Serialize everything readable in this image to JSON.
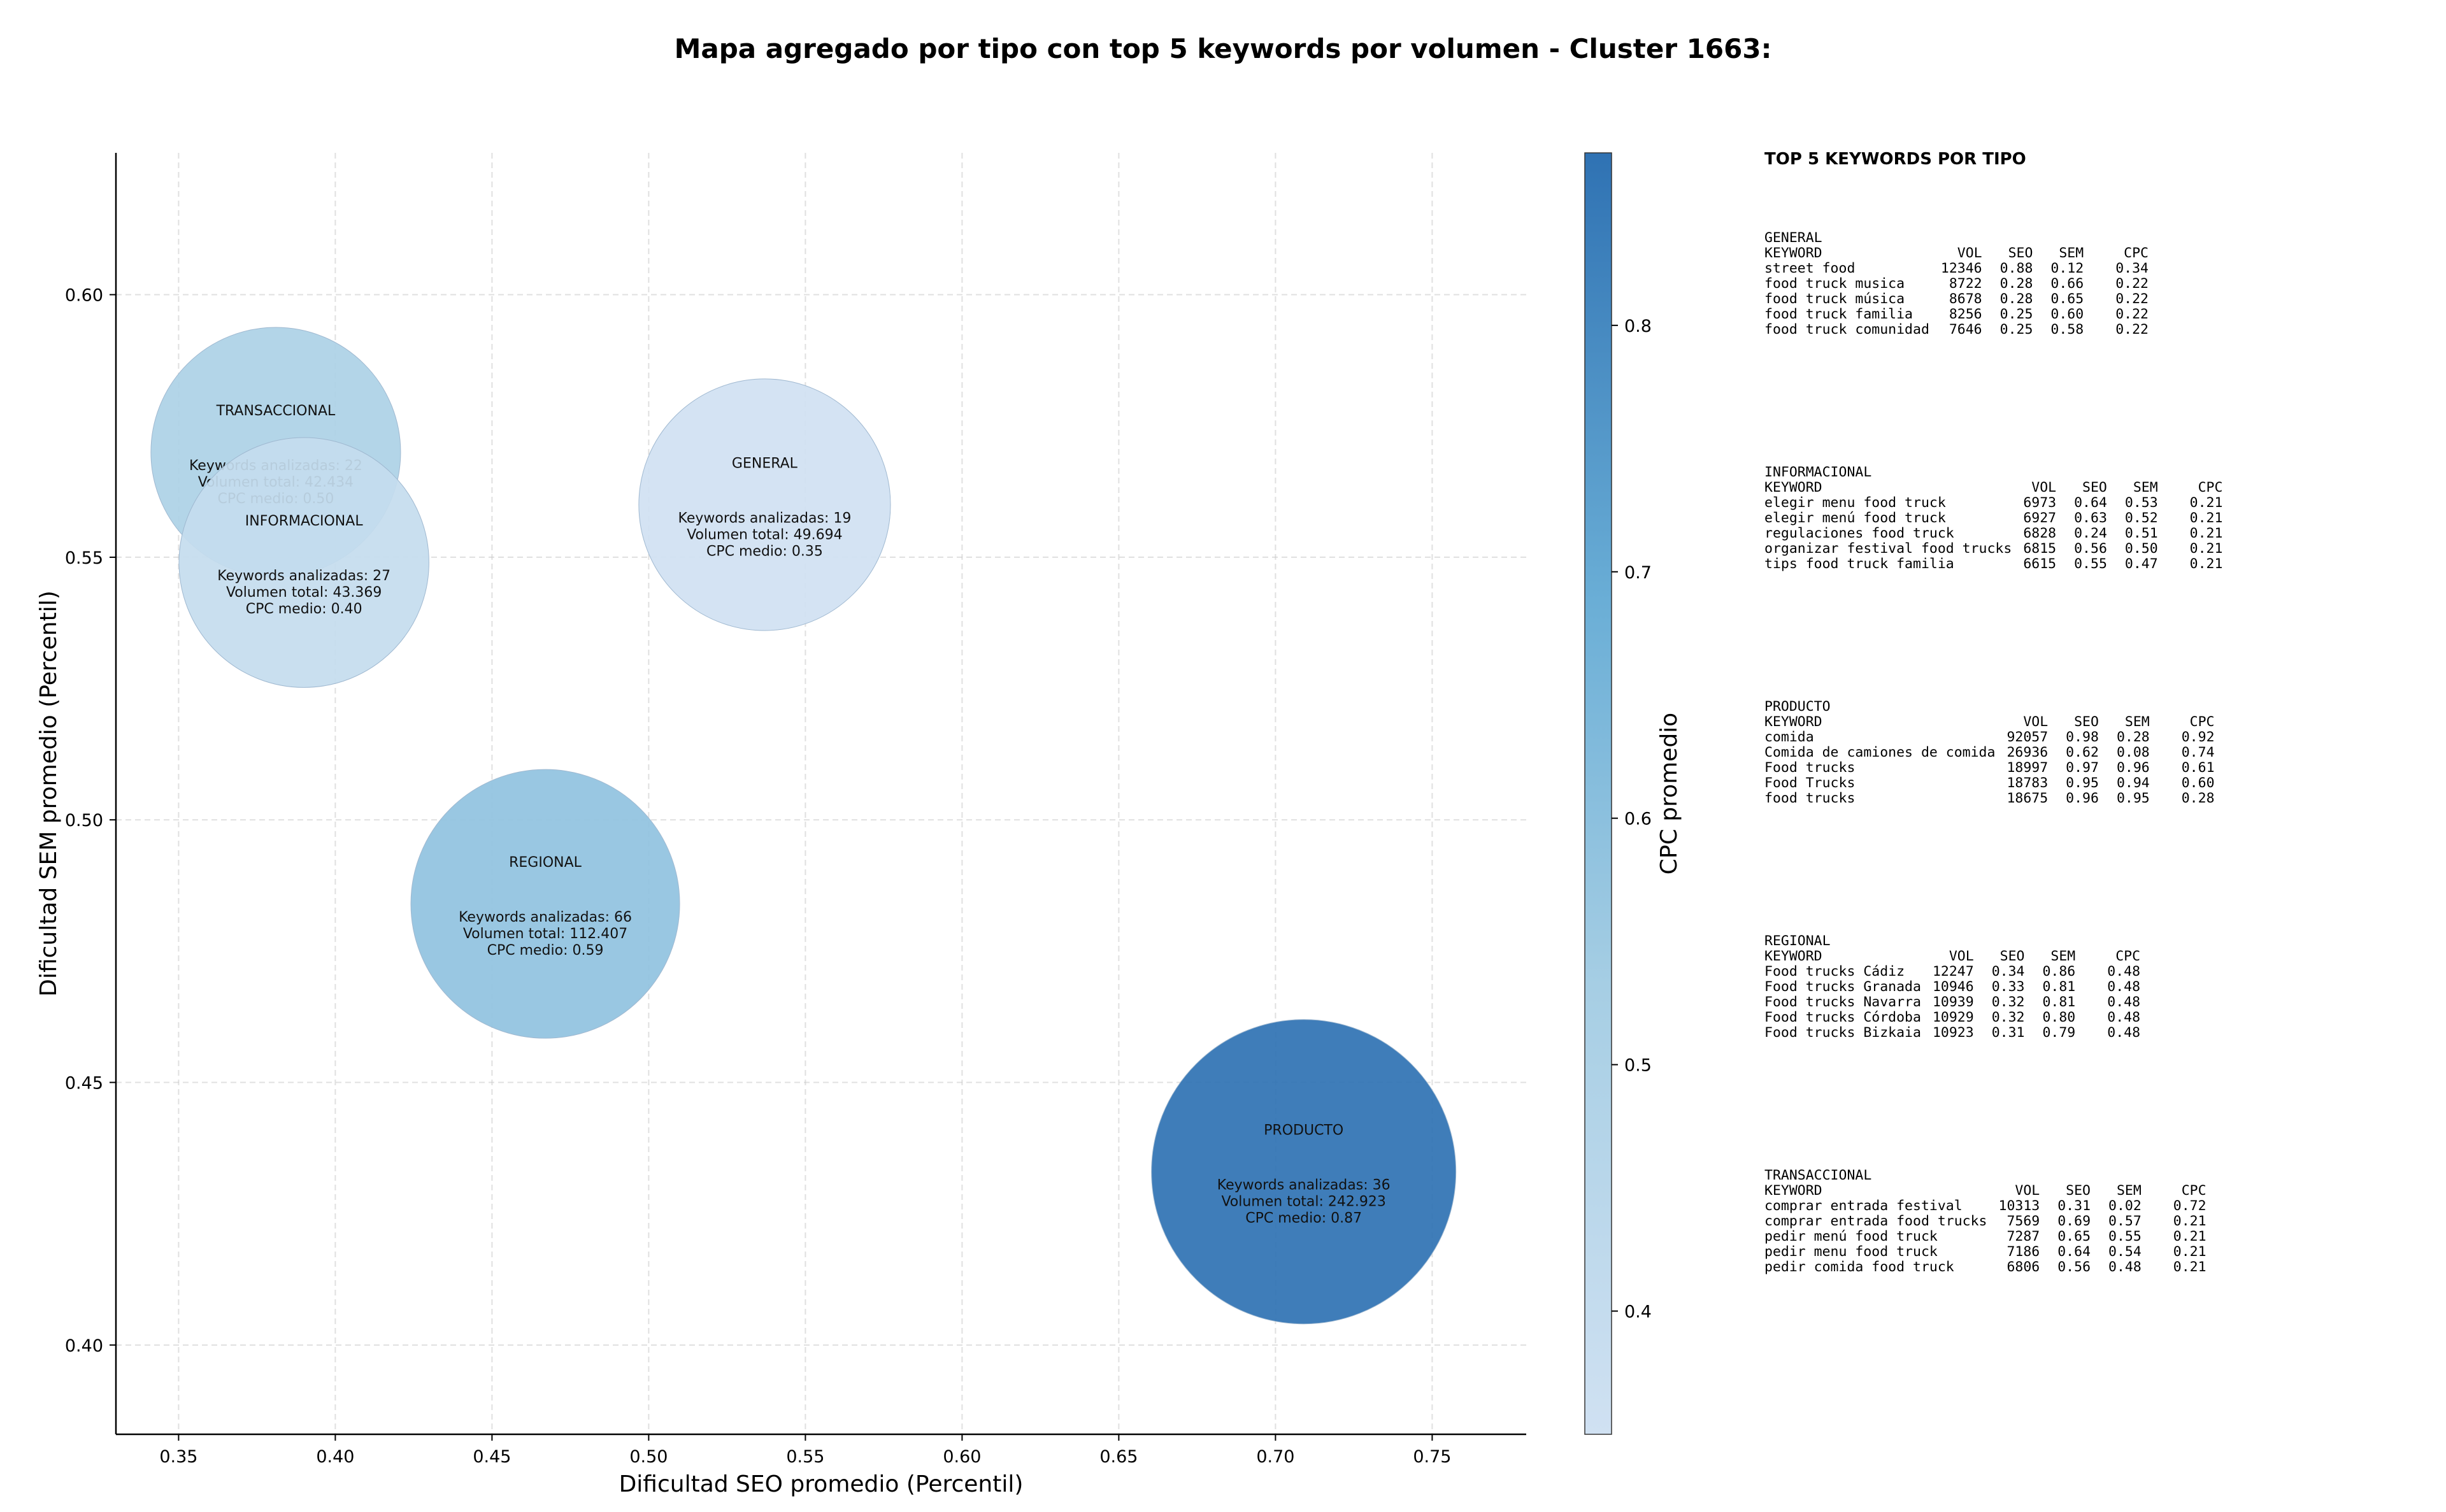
{
  "chart_data": {
    "type": "scatter",
    "title": "Mapa agregado por tipo con top 5 keywords por volumen - Cluster 1663:",
    "xlabel": "Dificultad SEO promedio (Percentil)",
    "ylabel": "Dificultad SEM promedio (Percentil)",
    "xlim": [
      0.33,
      0.78
    ],
    "ylim": [
      0.383,
      0.627
    ],
    "x_ticks": [
      "0.35",
      "0.40",
      "0.45",
      "0.50",
      "0.55",
      "0.60",
      "0.65",
      "0.70",
      "0.75"
    ],
    "y_ticks": [
      "0.40",
      "0.45",
      "0.50",
      "0.55",
      "0.60"
    ],
    "grid": true,
    "colorbar": {
      "label": "CPC promedio",
      "range": [
        0.35,
        0.87
      ],
      "ticks": [
        "0.4",
        "0.5",
        "0.6",
        "0.7",
        "0.8"
      ]
    },
    "bubbles": [
      {
        "name": "TRANSACCIONAL",
        "seo": 0.381,
        "sem": 0.57,
        "keywords_label": "Keywords analizadas: 22",
        "volume_label": "Volumen total: 42.434",
        "cpc_label": "CPC medio: 0.50",
        "volume": 42434,
        "cpc": 0.5
      },
      {
        "name": "INFORMACIONAL",
        "seo": 0.39,
        "sem": 0.549,
        "keywords_label": "Keywords analizadas: 27",
        "volume_label": "Volumen total: 43.369",
        "cpc_label": "CPC medio: 0.40",
        "volume": 43369,
        "cpc": 0.4
      },
      {
        "name": "GENERAL",
        "seo": 0.537,
        "sem": 0.56,
        "keywords_label": "Keywords analizadas: 19",
        "volume_label": "Volumen total: 49.694",
        "cpc_label": "CPC medio: 0.35",
        "volume": 49694,
        "cpc": 0.35
      },
      {
        "name": "REGIONAL",
        "seo": 0.467,
        "sem": 0.484,
        "keywords_label": "Keywords analizadas: 66",
        "volume_label": "Volumen total: 112.407",
        "cpc_label": "CPC medio: 0.59",
        "volume": 112407,
        "cpc": 0.59
      },
      {
        "name": "PRODUCTO",
        "seo": 0.709,
        "sem": 0.433,
        "keywords_label": "Keywords analizadas: 36",
        "volume_label": "Volumen total: 242.923",
        "cpc_label": "CPC medio: 0.87",
        "volume": 242923,
        "cpc": 0.87
      }
    ]
  },
  "side_panel": {
    "title": "TOP 5 KEYWORDS POR TIPO",
    "header": {
      "keyword": "KEYWORD",
      "vol": "VOL",
      "seo": "SEO",
      "sem": "SEM",
      "cpc": "CPC"
    },
    "groups": [
      {
        "name": "GENERAL",
        "rows": [
          {
            "keyword": "street food",
            "vol": "12346",
            "seo": "0.88",
            "sem": "0.12",
            "cpc": "0.34"
          },
          {
            "keyword": "food truck musica",
            "vol": "8722",
            "seo": "0.28",
            "sem": "0.66",
            "cpc": "0.22"
          },
          {
            "keyword": "food truck música",
            "vol": "8678",
            "seo": "0.28",
            "sem": "0.65",
            "cpc": "0.22"
          },
          {
            "keyword": "food truck familia",
            "vol": "8256",
            "seo": "0.25",
            "sem": "0.60",
            "cpc": "0.22"
          },
          {
            "keyword": "food truck comunidad",
            "vol": "7646",
            "seo": "0.25",
            "sem": "0.58",
            "cpc": "0.22"
          }
        ]
      },
      {
        "name": "INFORMACIONAL",
        "rows": [
          {
            "keyword": "elegir menu food truck",
            "vol": "6973",
            "seo": "0.64",
            "sem": "0.53",
            "cpc": "0.21"
          },
          {
            "keyword": "elegir menú food truck",
            "vol": "6927",
            "seo": "0.63",
            "sem": "0.52",
            "cpc": "0.21"
          },
          {
            "keyword": "regulaciones food truck",
            "vol": "6828",
            "seo": "0.24",
            "sem": "0.51",
            "cpc": "0.21"
          },
          {
            "keyword": "organizar festival food trucks",
            "vol": "6815",
            "seo": "0.56",
            "sem": "0.50",
            "cpc": "0.21"
          },
          {
            "keyword": "tips food truck familia",
            "vol": "6615",
            "seo": "0.55",
            "sem": "0.47",
            "cpc": "0.21"
          }
        ]
      },
      {
        "name": "PRODUCTO",
        "rows": [
          {
            "keyword": "comida",
            "vol": "92057",
            "seo": "0.98",
            "sem": "0.28",
            "cpc": "0.92"
          },
          {
            "keyword": "Comida de camiones de comida",
            "vol": "26936",
            "seo": "0.62",
            "sem": "0.08",
            "cpc": "0.74"
          },
          {
            "keyword": "Food trucks",
            "vol": "18997",
            "seo": "0.97",
            "sem": "0.96",
            "cpc": "0.61"
          },
          {
            "keyword": "Food Trucks",
            "vol": "18783",
            "seo": "0.95",
            "sem": "0.94",
            "cpc": "0.60"
          },
          {
            "keyword": "food trucks",
            "vol": "18675",
            "seo": "0.96",
            "sem": "0.95",
            "cpc": "0.28"
          }
        ]
      },
      {
        "name": "REGIONAL",
        "rows": [
          {
            "keyword": "Food trucks Cádiz",
            "vol": "12247",
            "seo": "0.34",
            "sem": "0.86",
            "cpc": "0.48"
          },
          {
            "keyword": "Food trucks Granada",
            "vol": "10946",
            "seo": "0.33",
            "sem": "0.81",
            "cpc": "0.48"
          },
          {
            "keyword": "Food trucks Navarra",
            "vol": "10939",
            "seo": "0.32",
            "sem": "0.81",
            "cpc": "0.48"
          },
          {
            "keyword": "Food trucks Córdoba",
            "vol": "10929",
            "seo": "0.32",
            "sem": "0.80",
            "cpc": "0.48"
          },
          {
            "keyword": "Food trucks Bizkaia",
            "vol": "10923",
            "seo": "0.31",
            "sem": "0.79",
            "cpc": "0.48"
          }
        ]
      },
      {
        "name": "TRANSACCIONAL",
        "rows": [
          {
            "keyword": "comprar entrada festival",
            "vol": "10313",
            "seo": "0.31",
            "sem": "0.02",
            "cpc": "0.72"
          },
          {
            "keyword": "comprar entrada food trucks",
            "vol": "7569",
            "seo": "0.69",
            "sem": "0.57",
            "cpc": "0.21"
          },
          {
            "keyword": "pedir menú food truck",
            "vol": "7287",
            "seo": "0.65",
            "sem": "0.55",
            "cpc": "0.21"
          },
          {
            "keyword": "pedir menu food truck",
            "vol": "7186",
            "seo": "0.64",
            "sem": "0.54",
            "cpc": "0.21"
          },
          {
            "keyword": "pedir comida food truck",
            "vol": "6806",
            "seo": "0.56",
            "sem": "0.48",
            "cpc": "0.21"
          }
        ]
      }
    ]
  }
}
